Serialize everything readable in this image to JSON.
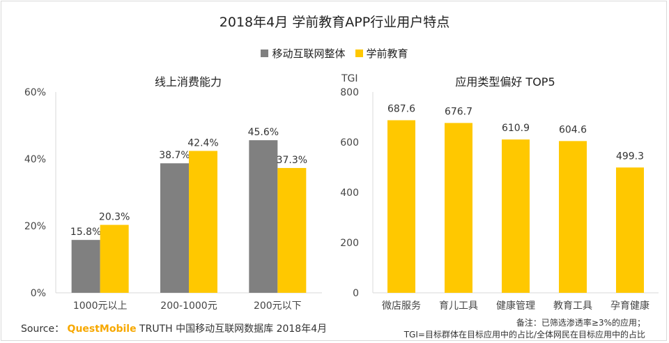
{
  "title": "2018年4月 学前教育APP行业用户特点",
  "legend": [
    {
      "label": "移动互联网整体",
      "color": "#808080"
    },
    {
      "label": "学前教育",
      "color": "#ffc800"
    }
  ],
  "chart_data": [
    {
      "type": "bar",
      "title": "线上消费能力",
      "categories": [
        "1000元以上",
        "200-1000元",
        "200元以下"
      ],
      "series": [
        {
          "name": "移动互联网整体",
          "values": [
            15.8,
            38.7,
            45.6
          ],
          "labels": [
            "15.8%",
            "38.7%",
            "45.6%"
          ],
          "color": "#808080"
        },
        {
          "name": "学前教育",
          "values": [
            20.3,
            42.4,
            37.3
          ],
          "labels": [
            "20.3%",
            "42.4%",
            "37.3%"
          ],
          "color": "#ffc800"
        }
      ],
      "ylim": [
        0,
        60
      ],
      "yticks": [
        "0%",
        "20%",
        "40%",
        "60%"
      ],
      "ytick_values": [
        0,
        20,
        40,
        60
      ]
    },
    {
      "type": "bar",
      "title": "应用类型偏好 TOP5",
      "ylabel": "TGI",
      "categories": [
        "微店服务",
        "育儿工具",
        "健康管理",
        "教育工具",
        "孕育健康"
      ],
      "series": [
        {
          "name": "学前教育",
          "values": [
            687.6,
            676.7,
            610.9,
            604.6,
            499.3
          ],
          "labels": [
            "687.6",
            "676.7",
            "610.9",
            "604.6",
            "499.3"
          ],
          "color": "#ffc800"
        }
      ],
      "ylim": [
        0,
        800
      ],
      "yticks": [
        "0",
        "200",
        "400",
        "600",
        "800"
      ],
      "ytick_values": [
        0,
        200,
        400,
        600,
        800
      ]
    }
  ],
  "footer": {
    "source_prefix": "Source：",
    "brand": "QuestMobile",
    "source_suffix": " TRUTH 中国移动互联网数据库 2018年4月",
    "note_line1": "备注：已筛选渗透率≥3%的应用；",
    "note_line2": "TGI=目标群体在目标应用中的占比/全体网民在目标应用中的占比"
  }
}
